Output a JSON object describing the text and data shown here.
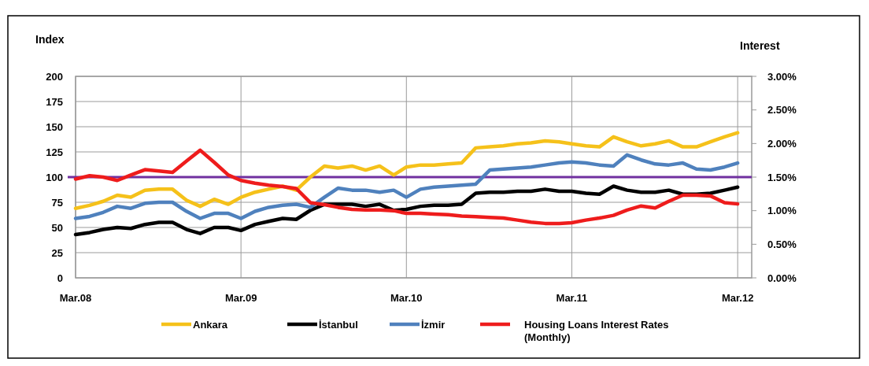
{
  "chart_data": {
    "type": "line",
    "ylabel": "Index",
    "y2label": "Interest",
    "x": [
      "2008-03",
      "2008-04",
      "2008-05",
      "2008-06",
      "2008-07",
      "2008-08",
      "2008-09",
      "2008-10",
      "2008-11",
      "2008-12",
      "2009-01",
      "2009-02",
      "2009-03",
      "2009-04",
      "2009-05",
      "2009-06",
      "2009-07",
      "2009-08",
      "2009-09",
      "2009-10",
      "2009-11",
      "2009-12",
      "2010-01",
      "2010-02",
      "2010-03",
      "2010-04",
      "2010-05",
      "2010-06",
      "2010-07",
      "2010-08",
      "2010-09",
      "2010-10",
      "2010-11",
      "2010-12",
      "2011-01",
      "2011-02",
      "2011-03",
      "2011-04",
      "2011-05",
      "2011-06",
      "2011-07",
      "2011-08",
      "2011-09",
      "2011-10",
      "2011-11",
      "2011-12",
      "2012-01",
      "2012-02",
      "2012-03"
    ],
    "series": [
      {
        "name": "Ankara",
        "color": "#f5c11a",
        "values": [
          69,
          72,
          76,
          82,
          80,
          87,
          88,
          88,
          77,
          71,
          78,
          73,
          80,
          85,
          88,
          91,
          87,
          100,
          111,
          109,
          111,
          107,
          111,
          102,
          110,
          112,
          112,
          113,
          114,
          129,
          130,
          131,
          133,
          134,
          136,
          135,
          133,
          131,
          130,
          140,
          135,
          131,
          133,
          136,
          130,
          130,
          135,
          140,
          144
        ]
      },
      {
        "name": "İstanbul",
        "color": "#000000",
        "values": [
          43,
          45,
          48,
          50,
          49,
          53,
          55,
          55,
          48,
          44,
          50,
          50,
          47,
          53,
          56,
          59,
          58,
          67,
          73,
          73,
          73,
          71,
          73,
          67,
          68,
          71,
          72,
          72,
          73,
          84,
          85,
          85,
          86,
          86,
          88,
          86,
          86,
          84,
          83,
          91,
          87,
          85,
          85,
          87,
          83,
          83,
          84,
          87,
          90
        ]
      },
      {
        "name": "İzmir",
        "color": "#4f81bd",
        "values": [
          59,
          61,
          65,
          71,
          69,
          74,
          75,
          75,
          66,
          59,
          64,
          64,
          59,
          66,
          70,
          72,
          73,
          70,
          80,
          89,
          87,
          87,
          85,
          87,
          80,
          88,
          90,
          91,
          92,
          93,
          107,
          108,
          109,
          110,
          112,
          114,
          115,
          114,
          112,
          111,
          122,
          117,
          113,
          112,
          114,
          108,
          107,
          110,
          114
        ]
      },
      {
        "name": "Housing Loans Interest Rates (Monthly)",
        "color": "#ee1c1c",
        "axis": "y2",
        "values": [
          1.47,
          1.52,
          1.5,
          1.45,
          1.53,
          1.61,
          1.59,
          1.57,
          1.74,
          1.9,
          1.72,
          1.53,
          1.45,
          1.41,
          1.38,
          1.36,
          1.33,
          1.12,
          1.09,
          1.05,
          1.02,
          1.01,
          1.01,
          1.0,
          0.96,
          0.96,
          0.95,
          0.94,
          0.92,
          0.91,
          0.9,
          0.89,
          0.86,
          0.83,
          0.81,
          0.81,
          0.82,
          0.86,
          0.89,
          0.93,
          1.01,
          1.07,
          1.04,
          1.14,
          1.23,
          1.23,
          1.22,
          1.12,
          1.1
        ]
      }
    ],
    "xlim": [
      "2008-03",
      "2012-04"
    ],
    "xticks": [
      {
        "value": "2008-03",
        "label": "Mar.08"
      },
      {
        "value": "2009-03",
        "label": "Mar.09"
      },
      {
        "value": "2010-03",
        "label": "Mar.10"
      },
      {
        "value": "2011-03",
        "label": "Mar.11"
      },
      {
        "value": "2012-03",
        "label": "Mar.12"
      }
    ],
    "ylim": [
      0,
      200
    ],
    "yticks": [
      0,
      25,
      50,
      75,
      100,
      125,
      150,
      175,
      200
    ],
    "y2lim": [
      0,
      3
    ],
    "y2ticks": [
      {
        "value": 0,
        "label": "0.00%"
      },
      {
        "value": 0.5,
        "label": "0.50%"
      },
      {
        "value": 1,
        "label": "1.00%"
      },
      {
        "value": 1.5,
        "label": "1.50%"
      },
      {
        "value": 2,
        "label": "2.00%"
      },
      {
        "value": 2.5,
        "label": "2.50%"
      },
      {
        "value": 3,
        "label": "3.00%"
      }
    ],
    "ref_lines": [
      {
        "axis": "y",
        "value": 100,
        "color": "#7030a0"
      }
    ],
    "grid": true,
    "legend": "bottom",
    "line_style": "solid",
    "marker": "none"
  }
}
